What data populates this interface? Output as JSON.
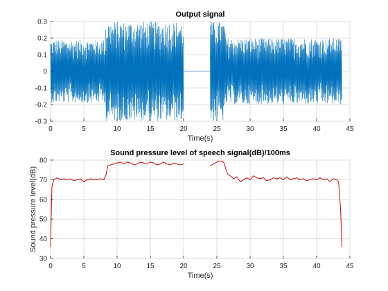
{
  "chart_data": [
    {
      "type": "line",
      "title": "Output signal",
      "xlabel": "Time(s)",
      "ylabel": "",
      "xlim": [
        0,
        45
      ],
      "ylim": [
        -0.3,
        0.3
      ],
      "xticks": [
        "0",
        "5",
        "10",
        "15",
        "20",
        "25",
        "30",
        "35",
        "40",
        "45"
      ],
      "yticks": [
        "-0.3",
        "-0.2",
        "-0.1",
        "0",
        "0.1",
        "0.2",
        "0.3"
      ],
      "grid": true,
      "color": "#0072BD",
      "series": [
        {
          "segments": [
            {
              "x_start": 0.0,
              "x_end": 8.3,
              "amplitude_max": 0.19,
              "amplitude_min": -0.19
            },
            {
              "x_start": 8.3,
              "x_end": 20.0,
              "amplitude_max": 0.3,
              "amplitude_min": -0.3
            },
            {
              "x_start": 20.0,
              "x_end": 24.0,
              "amplitude_max": 0.0,
              "amplitude_min": 0.0
            },
            {
              "x_start": 24.0,
              "x_end": 26.3,
              "amplitude_max": 0.3,
              "amplitude_min": -0.3
            },
            {
              "x_start": 26.3,
              "x_end": 43.8,
              "amplitude_max": 0.2,
              "amplitude_min": -0.2
            }
          ]
        }
      ]
    },
    {
      "type": "line",
      "title": "Sound pressure level of speech signal(dB)/100ms",
      "xlabel": "Time(s)",
      "ylabel": "Sound pressure level(dB)",
      "xlim": [
        0,
        45
      ],
      "ylim": [
        30,
        80
      ],
      "xticks": [
        "0",
        "5",
        "10",
        "15",
        "20",
        "25",
        "30",
        "35",
        "40",
        "45"
      ],
      "yticks": [
        "30",
        "40",
        "50",
        "60",
        "70",
        "80"
      ],
      "grid": true,
      "color": "#CC0000",
      "series": [
        {
          "x": [
            0.0,
            0.1,
            0.2,
            0.3,
            0.5,
            1.0,
            1.5,
            2.0,
            2.5,
            3.0,
            3.5,
            4.0,
            4.5,
            5.0,
            5.5,
            6.0,
            6.5,
            7.0,
            7.5,
            8.0,
            8.3,
            8.6,
            9.0,
            9.5,
            10.0,
            10.5,
            11.0,
            11.5,
            12.0,
            12.5,
            13.0,
            13.5,
            14.0,
            14.5,
            15.0,
            15.5,
            16.0,
            16.5,
            17.0,
            17.5,
            18.0,
            18.5,
            19.0,
            19.5,
            20.0
          ],
          "y": [
            36,
            52,
            66,
            68,
            70,
            71,
            70,
            70.5,
            70,
            70.5,
            69.5,
            70,
            70.5,
            69,
            70,
            70.5,
            70,
            70,
            70.5,
            70,
            72,
            77,
            77.5,
            78,
            78.5,
            79,
            78,
            79,
            78.5,
            77.5,
            78,
            79,
            78.5,
            78,
            79,
            78.5,
            77.5,
            78,
            79,
            78,
            77.5,
            78.5,
            78,
            77.5,
            78
          ]
        },
        {
          "x": [
            24.0,
            24.5,
            25.0,
            25.5,
            26.0,
            26.3,
            26.6,
            27.0,
            27.5,
            28.0,
            28.5,
            29.0,
            29.5,
            30.0,
            30.5,
            31.0,
            31.5,
            32.0,
            32.5,
            33.0,
            33.5,
            34.0,
            34.5,
            35.0,
            35.5,
            36.0,
            36.5,
            37.0,
            37.5,
            38.0,
            38.5,
            39.0,
            39.5,
            40.0,
            40.5,
            41.0,
            41.5,
            42.0,
            42.5,
            43.0,
            43.3,
            43.6,
            43.8
          ],
          "y": [
            77,
            78,
            79,
            79.5,
            79,
            76,
            73,
            72,
            70.5,
            71.5,
            69,
            70,
            71,
            70,
            72,
            71,
            70.5,
            71,
            69.5,
            70,
            71,
            70.5,
            71,
            70,
            71.5,
            70,
            70.5,
            71,
            70,
            70.5,
            69.5,
            70,
            70.5,
            70,
            71,
            70,
            70.5,
            69,
            70.5,
            70,
            69,
            55,
            36
          ]
        }
      ]
    }
  ]
}
